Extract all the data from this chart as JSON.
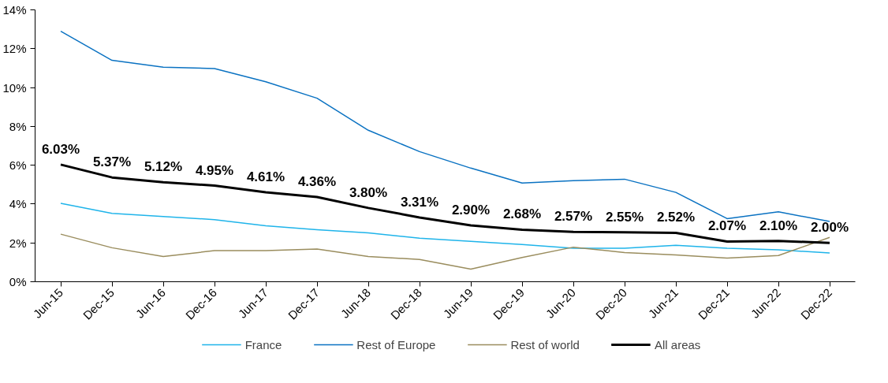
{
  "chart_data": {
    "type": "line",
    "categories": [
      "Jun-15",
      "Dec-15",
      "Jun-16",
      "Dec-16",
      "Jun-17",
      "Dec-17",
      "Jun-18",
      "Dec-18",
      "Jun-19",
      "Dec-19",
      "Jun-20",
      "Dec-20",
      "Jun-21",
      "Dec-21",
      "Jun-22",
      "Dec-22"
    ],
    "ylim": [
      0,
      14
    ],
    "yticks": [
      {
        "value": 0,
        "label": "0%"
      },
      {
        "value": 2,
        "label": "2%"
      },
      {
        "value": 4,
        "label": "4%"
      },
      {
        "value": 6,
        "label": "6%"
      },
      {
        "value": 8,
        "label": "8%"
      },
      {
        "value": 10,
        "label": "10%"
      },
      {
        "value": 12,
        "label": "12%"
      },
      {
        "value": 14,
        "label": "14%"
      }
    ],
    "grid": false,
    "legend": "bottom",
    "marker": "none",
    "series": [
      {
        "name": "France",
        "color": "#1fb4ea",
        "values": [
          4.04,
          3.52,
          3.36,
          3.2,
          2.88,
          2.68,
          2.52,
          2.24,
          2.08,
          1.92,
          1.72,
          1.72,
          1.88,
          1.72,
          1.64,
          1.48
        ]
      },
      {
        "name": "Rest of Europe",
        "color": "#0a72c2",
        "values": [
          12.9,
          11.4,
          11.05,
          10.98,
          10.3,
          9.45,
          7.8,
          6.7,
          5.85,
          5.08,
          5.2,
          5.28,
          4.6,
          3.25,
          3.6,
          3.1
        ]
      },
      {
        "name": "Rest of world",
        "color": "#9a8d5e",
        "values": [
          2.45,
          1.75,
          1.3,
          1.6,
          1.6,
          1.68,
          1.3,
          1.15,
          0.65,
          1.25,
          1.78,
          1.5,
          1.38,
          1.22,
          1.35,
          2.28
        ]
      },
      {
        "name": "All areas",
        "color": "#000000",
        "values": [
          6.03,
          5.37,
          5.12,
          4.95,
          4.61,
          4.36,
          3.8,
          3.31,
          2.9,
          2.68,
          2.57,
          2.55,
          2.52,
          2.07,
          2.1,
          2.0
        ],
        "value_labels": [
          "6.03%",
          "5.37%",
          "5.12%",
          "4.95%",
          "4.61%",
          "4.36%",
          "3.80%",
          "3.31%",
          "2.90%",
          "2.68%",
          "2.57%",
          "2.55%",
          "2.52%",
          "2.07%",
          "2.10%",
          "2.00%"
        ]
      }
    ]
  }
}
